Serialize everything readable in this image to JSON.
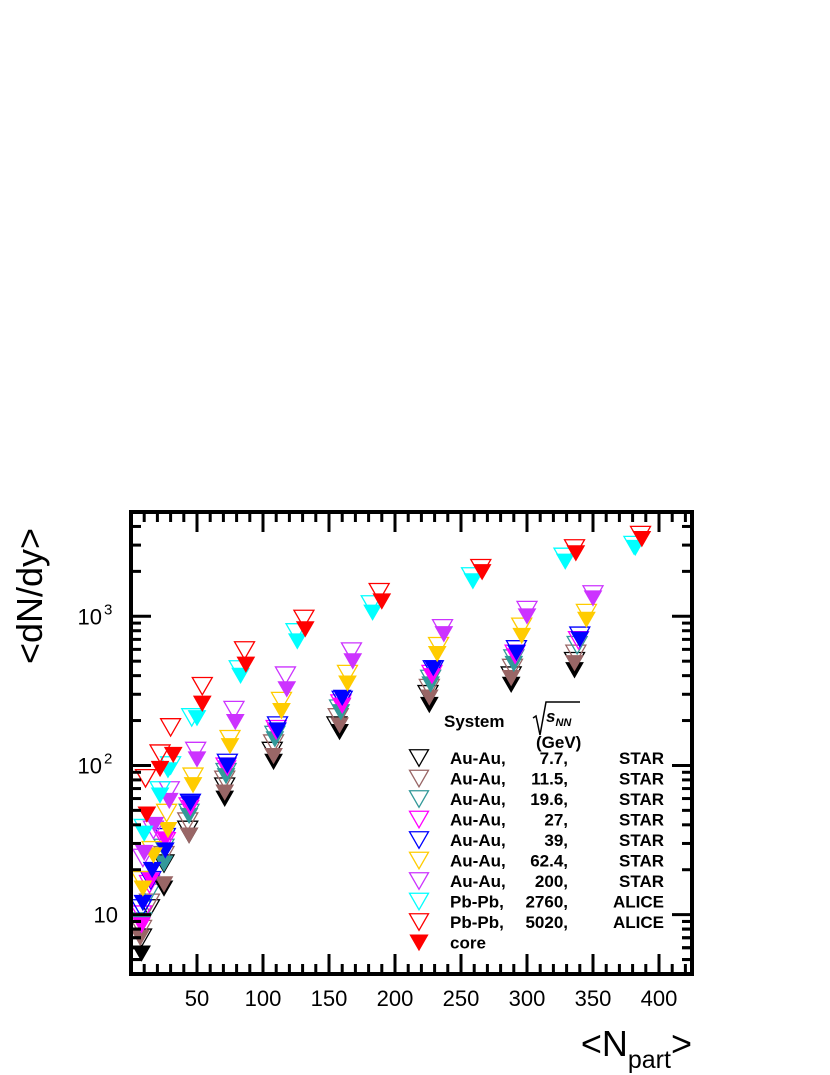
{
  "chart_data": {
    "type": "scatter",
    "xlabel": "<N",
    "xlabel_sub": "part",
    "xlabel_end": ">",
    "ylabel": "<dN/dy>",
    "xlim": [
      0,
      425
    ],
    "ylim": [
      4,
      5000
    ],
    "yscale": "log",
    "x_ticks": [
      "50",
      "100",
      "150",
      "200",
      "250",
      "300",
      "350",
      "400"
    ],
    "y_ticks": [
      {
        "value": 10,
        "label": "10",
        "exp": ""
      },
      {
        "value": 100,
        "label": "10",
        "exp": "2"
      },
      {
        "value": 1000,
        "label": "10",
        "exp": "3"
      }
    ],
    "legend": {
      "position": "bottom-right",
      "header": {
        "system": "System",
        "energy": "s",
        "energy_sub": "NN",
        "unit": "(GeV)"
      },
      "entries": [
        {
          "system": "Au-Au,",
          "energy": "7.7,",
          "experiment": "STAR"
        },
        {
          "system": "Au-Au,",
          "energy": "11.5,",
          "experiment": "STAR"
        },
        {
          "system": "Au-Au,",
          "energy": "19.6,",
          "experiment": "STAR"
        },
        {
          "system": "Au-Au,",
          "energy": "27,",
          "experiment": "STAR"
        },
        {
          "system": "Au-Au,",
          "energy": "39,",
          "experiment": "STAR"
        },
        {
          "system": "Au-Au,",
          "energy": "62.4,",
          "experiment": "STAR"
        },
        {
          "system": "Au-Au,",
          "energy": "200,",
          "experiment": "STAR"
        },
        {
          "system": "Pb-Pb,",
          "energy": "2760,",
          "experiment": "ALICE"
        },
        {
          "system": "Pb-Pb,",
          "energy": "5020,",
          "experiment": "ALICE"
        },
        {
          "system": "core",
          "energy": "",
          "experiment": ""
        }
      ]
    },
    "series": [
      {
        "color": "#000000",
        "filled": false,
        "points": [
          [
            8,
            7
          ],
          [
            14,
            11
          ],
          [
            25,
            22
          ],
          [
            43,
            37
          ],
          [
            71,
            72
          ],
          [
            107,
            125
          ],
          [
            156,
            185
          ],
          [
            225,
            300
          ],
          [
            288,
            400
          ],
          [
            336,
            500
          ]
        ]
      },
      {
        "color": "#996666",
        "filled": false,
        "points": [
          [
            8,
            8
          ],
          [
            14,
            12
          ],
          [
            25,
            25
          ],
          [
            43,
            42
          ],
          [
            71,
            80
          ],
          [
            108,
            140
          ],
          [
            157,
            210
          ],
          [
            226,
            330
          ],
          [
            289,
            450
          ],
          [
            337,
            560
          ]
        ]
      },
      {
        "color": "#339999",
        "filled": false,
        "points": [
          [
            8,
            9
          ],
          [
            14,
            14
          ],
          [
            25,
            28
          ],
          [
            44,
            48
          ],
          [
            72,
            90
          ],
          [
            109,
            160
          ],
          [
            158,
            240
          ],
          [
            227,
            380
          ],
          [
            290,
            520
          ],
          [
            338,
            640
          ]
        ]
      },
      {
        "color": "#ff00ff",
        "filled": false,
        "points": [
          [
            8,
            10
          ],
          [
            14,
            16
          ],
          [
            26,
            31
          ],
          [
            44,
            53
          ],
          [
            72,
            98
          ],
          [
            110,
            175
          ],
          [
            159,
            260
          ],
          [
            228,
            410
          ],
          [
            291,
            560
          ],
          [
            339,
            690
          ]
        ]
      },
      {
        "color": "#0000ff",
        "filled": false,
        "points": [
          [
            8,
            11
          ],
          [
            15,
            17
          ],
          [
            26,
            33
          ],
          [
            45,
            56
          ],
          [
            73,
            104
          ],
          [
            111,
            185
          ],
          [
            160,
            275
          ],
          [
            229,
            440
          ],
          [
            292,
            600
          ],
          [
            340,
            740
          ]
        ]
      },
      {
        "color": "#ffcc00",
        "filled": false,
        "points": [
          [
            8,
            17
          ],
          [
            16,
            27
          ],
          [
            27,
            48
          ],
          [
            47,
            84
          ],
          [
            75,
            150
          ],
          [
            114,
            270
          ],
          [
            164,
            410
          ],
          [
            233,
            630
          ],
          [
            296,
            850
          ],
          [
            345,
            1050
          ]
        ]
      },
      {
        "color": "#cc33ff",
        "filled": false,
        "points": [
          [
            9,
            24
          ],
          [
            17,
            37
          ],
          [
            29,
            68
          ],
          [
            49,
            125
          ],
          [
            78,
            235
          ],
          [
            117,
            400
          ],
          [
            167,
            580
          ],
          [
            236,
            830
          ],
          [
            300,
            1100
          ],
          [
            350,
            1400
          ]
        ]
      },
      {
        "color": "#00ffff",
        "filled": false,
        "points": [
          [
            10,
            38
          ],
          [
            22,
            68
          ],
          [
            30,
            100
          ],
          [
            46,
            210
          ],
          [
            82,
            440
          ],
          [
            125,
            780
          ],
          [
            182,
            1200
          ],
          [
            258,
            1850
          ],
          [
            328,
            2500
          ],
          [
            381,
            3000
          ]
        ]
      },
      {
        "color": "#ff0000",
        "filled": false,
        "points": [
          [
            11,
            82
          ],
          [
            22,
            120
          ],
          [
            30,
            180
          ],
          [
            54,
            340
          ],
          [
            86,
            590
          ],
          [
            131,
            960
          ],
          [
            188,
            1450
          ],
          [
            265,
            2100
          ],
          [
            336,
            2850
          ],
          [
            386,
            3500
          ]
        ]
      },
      {
        "color": "#000000",
        "filled": true,
        "points": [
          [
            8,
            5.5
          ],
          [
            25,
            15
          ],
          [
            44,
            34
          ],
          [
            71,
            60
          ],
          [
            108,
            106
          ],
          [
            158,
            168
          ],
          [
            226,
            255
          ],
          [
            288,
            348
          ],
          [
            336,
            436
          ]
        ]
      },
      {
        "color": "#996666",
        "filled": true,
        "points": [
          [
            7,
            7
          ],
          [
            25,
            16
          ],
          [
            44,
            34
          ],
          [
            71,
            66
          ],
          [
            108,
            116
          ],
          [
            158,
            186
          ],
          [
            226,
            286
          ],
          [
            288,
            386
          ],
          [
            336,
            486
          ]
        ]
      },
      {
        "color": "#339999",
        "filled": true,
        "points": [
          [
            8,
            9
          ],
          [
            25,
            22
          ],
          [
            44,
            46
          ],
          [
            72,
            85
          ],
          [
            109,
            150
          ],
          [
            159,
            228
          ],
          [
            227,
            350
          ],
          [
            290,
            480
          ]
        ]
      },
      {
        "color": "#ff00ff",
        "filled": true,
        "points": [
          [
            8,
            8.5
          ],
          [
            15,
            17
          ],
          [
            26,
            32
          ],
          [
            45,
            52
          ],
          [
            73,
            96
          ],
          [
            110,
            168
          ],
          [
            160,
            252
          ],
          [
            228,
            398
          ],
          [
            291,
            540
          ]
        ]
      },
      {
        "color": "#0000ff",
        "filled": true,
        "points": [
          [
            9,
            12
          ],
          [
            16,
            20
          ],
          [
            26,
            27
          ],
          [
            45,
            56
          ],
          [
            73,
            100
          ],
          [
            111,
            172
          ],
          [
            160,
            285
          ],
          [
            229,
            450
          ],
          [
            292,
            570
          ],
          [
            340,
            700
          ]
        ]
      },
      {
        "color": "#ffcc00",
        "filled": true,
        "points": [
          [
            9,
            15
          ],
          [
            17,
            25
          ],
          [
            28,
            37
          ],
          [
            47,
            74
          ],
          [
            75,
            135
          ],
          [
            114,
            232
          ],
          [
            164,
            355
          ],
          [
            232,
            560
          ],
          [
            296,
            740
          ],
          [
            345,
            950
          ]
        ]
      },
      {
        "color": "#cc33ff",
        "filled": true,
        "points": [
          [
            10,
            26
          ],
          [
            18,
            40
          ],
          [
            29,
            58
          ],
          [
            50,
            110
          ],
          [
            79,
            196
          ],
          [
            118,
            325
          ],
          [
            168,
            500
          ],
          [
            237,
            760
          ],
          [
            300,
            1000
          ],
          [
            350,
            1320
          ]
        ]
      },
      {
        "color": "#00ffff",
        "filled": true,
        "points": [
          [
            10,
            35
          ],
          [
            22,
            63
          ],
          [
            28,
            93
          ],
          [
            50,
            208
          ],
          [
            83,
            400
          ],
          [
            126,
            680
          ],
          [
            183,
            1060
          ],
          [
            259,
            1720
          ],
          [
            329,
            2330
          ],
          [
            382,
            2880
          ]
        ]
      },
      {
        "color": "#ff0000",
        "filled": true,
        "points": [
          [
            12,
            47
          ],
          [
            22,
            95
          ],
          [
            32,
            118
          ],
          [
            54,
            260
          ],
          [
            87,
            475
          ],
          [
            132,
            820
          ],
          [
            190,
            1260
          ],
          [
            266,
            1980
          ],
          [
            337,
            2650
          ],
          [
            387,
            3300
          ]
        ]
      }
    ]
  }
}
